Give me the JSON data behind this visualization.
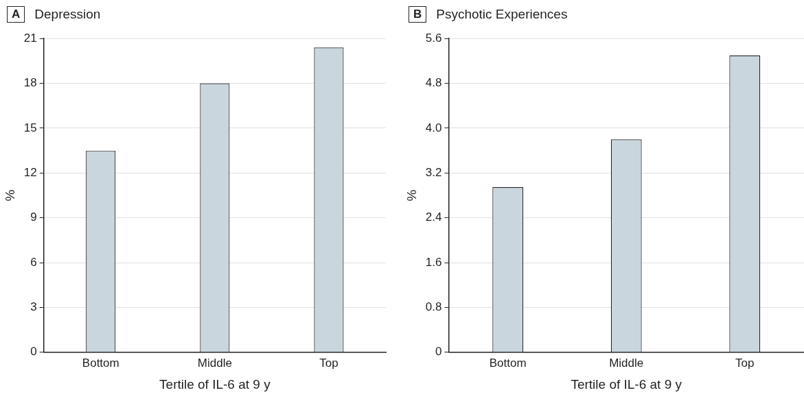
{
  "chart_data": [
    {
      "type": "bar",
      "title": "Depression",
      "annotations": [
        "A"
      ],
      "xlabel": "Tertile of IL-6 at 9 y",
      "ylabel": "%",
      "categories": [
        "Bottom",
        "Middle",
        "Top"
      ],
      "values": [
        13.5,
        18.0,
        20.4
      ],
      "color": "#c9d6dd",
      "ylim": [
        0,
        21
      ],
      "yticks": [
        0,
        3,
        6,
        9,
        12,
        15,
        18,
        21
      ],
      "grid": "y"
    },
    {
      "type": "bar",
      "title": "Psychotic Experiences",
      "annotations": [
        "B"
      ],
      "xlabel": "Tertile of IL-6 at 9 y",
      "ylabel": "%",
      "categories": [
        "Bottom",
        "Middle",
        "Top"
      ],
      "values": [
        2.95,
        3.8,
        5.3
      ],
      "color": "#c9d6dd",
      "ylim": [
        0,
        5.6
      ],
      "yticks": [
        0,
        0.8,
        1.6,
        2.4,
        3.2,
        {
          "value": 4,
          "label": "4.0"
        },
        4.8,
        5.6
      ],
      "grid": "y"
    }
  ]
}
